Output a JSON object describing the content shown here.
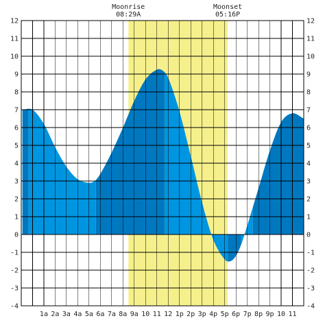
{
  "chart_data": {
    "type": "area",
    "title": "",
    "xlabel": "",
    "ylabel": "",
    "x_range_hours": [
      -1,
      24
    ],
    "ylim": [
      -4,
      12
    ],
    "yticks": [
      -4,
      -3,
      -2,
      -1,
      0,
      1,
      2,
      3,
      4,
      5,
      6,
      7,
      8,
      9,
      10,
      11,
      12
    ],
    "xtick_labels": [
      "1a",
      "2a",
      "3a",
      "4a",
      "5a",
      "6a",
      "7a",
      "8a",
      "9a",
      "10",
      "11",
      "12",
      "1p",
      "2p",
      "3p",
      "4p",
      "5p",
      "6p",
      "7p",
      "8p",
      "9p",
      "10",
      "11"
    ],
    "grid": true,
    "moon": {
      "rise_label": "Moonrise",
      "rise_time": "08:29A",
      "rise_hour": 8.48,
      "set_label": "Moonset",
      "set_time": "05:16P",
      "set_hour": 17.27
    },
    "series": [
      {
        "values_note": "",
        "x": [
          -0.9,
          0.0,
          1.0,
          2.0,
          3.0,
          4.0,
          5.0,
          5.5,
          6.0,
          7.0,
          8.0,
          9.0,
          10.0,
          11.0,
          11.5,
          12.0,
          13.0,
          14.0,
          15.0,
          16.0,
          17.0,
          17.5,
          18.0,
          18.5,
          19.0,
          20.0,
          21.0,
          22.0,
          23.0,
          24.0
        ],
        "y": [
          7.0,
          7.0,
          6.2,
          4.9,
          3.8,
          3.1,
          2.9,
          3.0,
          3.4,
          4.6,
          6.0,
          7.5,
          8.7,
          9.25,
          9.2,
          8.8,
          6.9,
          4.4,
          1.8,
          -0.3,
          -1.4,
          -1.5,
          -1.2,
          -0.5,
          0.5,
          2.6,
          4.7,
          6.3,
          6.8,
          6.5
        ]
      }
    ],
    "band_boundaries_hours": [
      -0.9,
      -0.35,
      5.6,
      11.7,
      17.27,
      18.45,
      19.5,
      24.0
    ],
    "colors": {
      "water_light": "#0095E0",
      "water_dark": "#0078C0",
      "moon_band": "#F5F08C",
      "grid": "#000000",
      "background": "#ffffff"
    }
  }
}
